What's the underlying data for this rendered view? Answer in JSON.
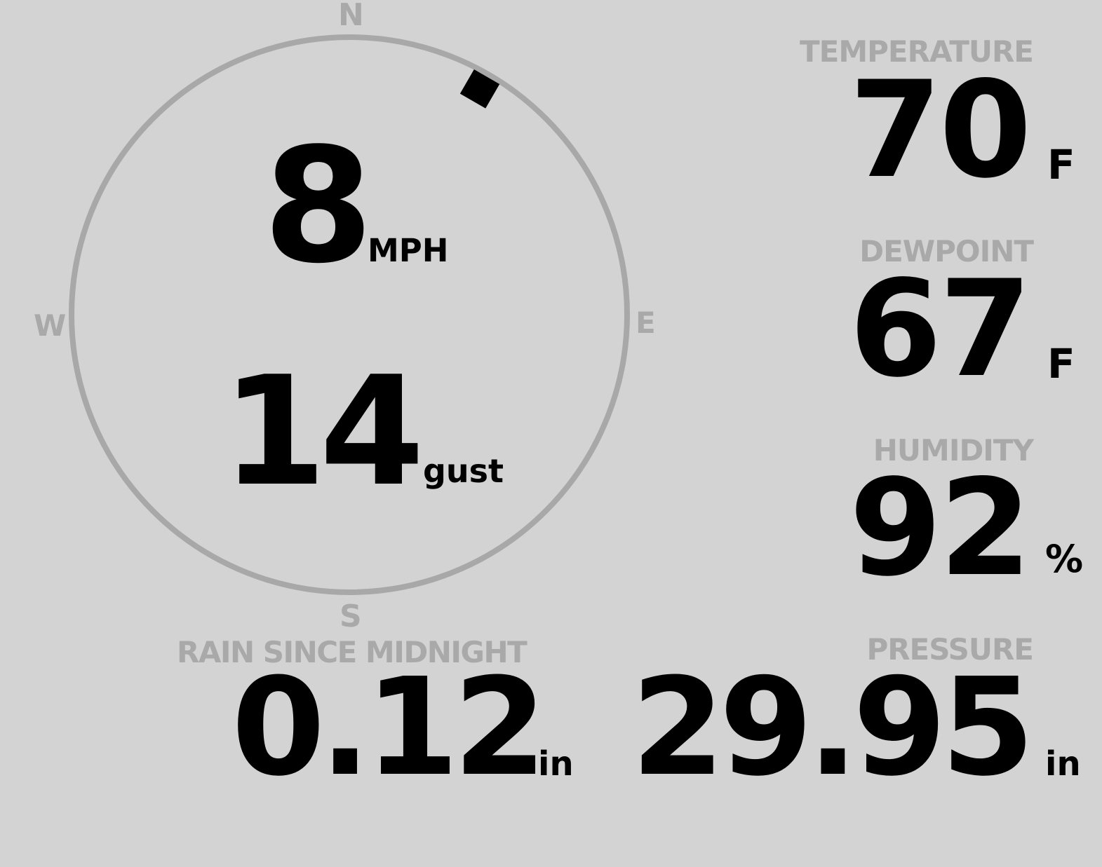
{
  "wind": {
    "speed": "8",
    "speed_unit": "MPH",
    "gust": "14",
    "gust_unit": "gust",
    "direction_degrees": 30,
    "compass": {
      "n": "N",
      "e": "E",
      "s": "S",
      "w": "W"
    }
  },
  "temperature": {
    "label": "TEMPERATURE",
    "value": "70",
    "unit": "F"
  },
  "dewpoint": {
    "label": "DEWPOINT",
    "value": "67",
    "unit": "F"
  },
  "humidity": {
    "label": "HUMIDITY",
    "value": "92",
    "unit": "%"
  },
  "rain": {
    "label": "RAIN SINCE MIDNIGHT",
    "value": "0.12",
    "unit": "in"
  },
  "pressure": {
    "label": "PRESSURE",
    "value": "29.95",
    "unit": "in"
  },
  "colors": {
    "background": "#d3d3d3",
    "label": "#a9a9a9",
    "ring": "#a8a8a8",
    "value": "#000000"
  }
}
